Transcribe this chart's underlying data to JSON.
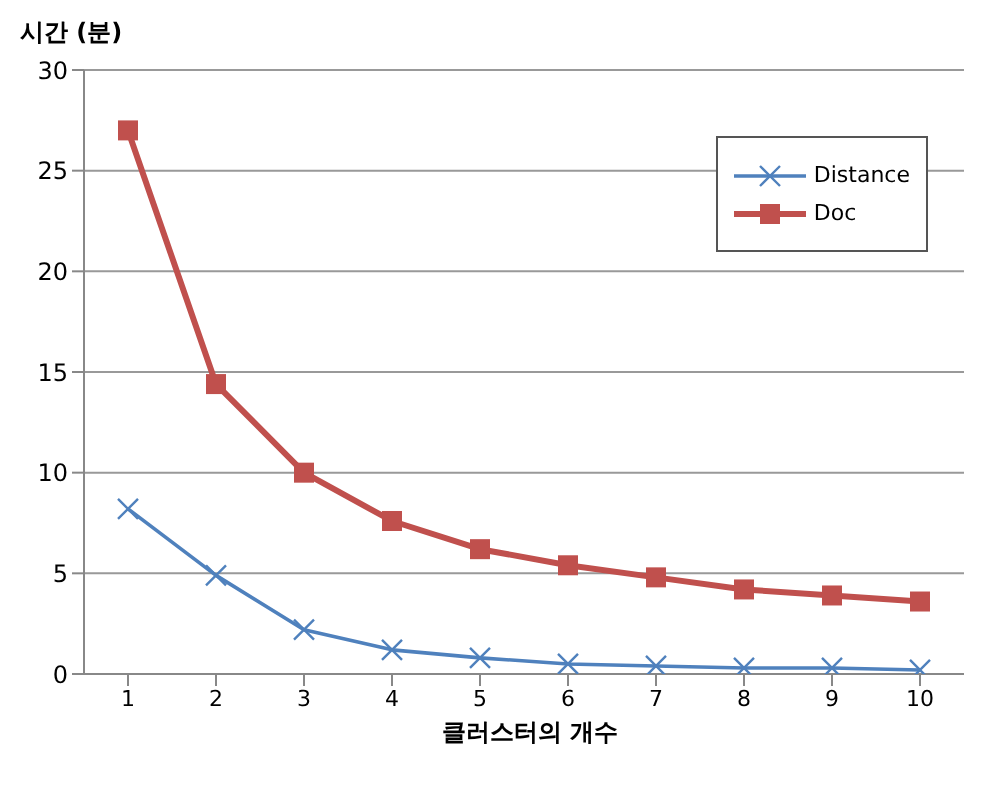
{
  "chart_data": {
    "type": "line",
    "ylabel": "시간 (분)",
    "xlabel": "클러스터의 개수",
    "categories": [
      "1",
      "2",
      "3",
      "4",
      "5",
      "6",
      "7",
      "8",
      "9",
      "10"
    ],
    "series": [
      {
        "name": "Distance",
        "color": "#4f81bd",
        "marker": "cross",
        "values": [
          8.2,
          4.9,
          2.2,
          1.2,
          0.8,
          0.5,
          0.4,
          0.3,
          0.3,
          0.2
        ]
      },
      {
        "name": "Doc",
        "color": "#c0504d",
        "marker": "square",
        "values": [
          27,
          14.4,
          10,
          7.6,
          6.2,
          5.4,
          4.8,
          4.2,
          3.9,
          3.6
        ]
      }
    ],
    "ylim": [
      0,
      30
    ],
    "yticks": [
      0,
      5,
      10,
      15,
      20,
      25,
      30
    ],
    "grid": "y",
    "legend": "top right"
  }
}
